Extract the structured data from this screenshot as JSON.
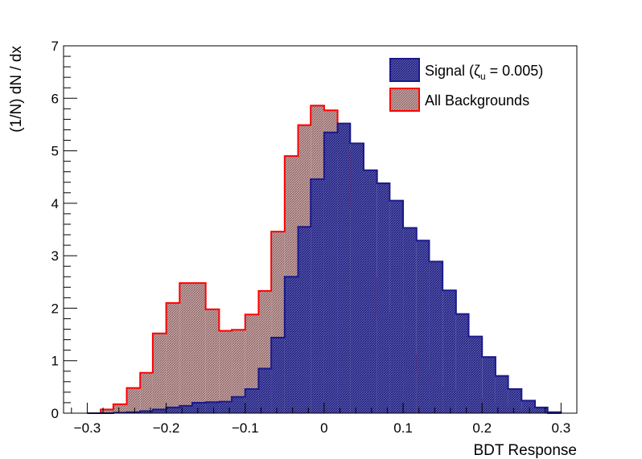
{
  "chart_data": {
    "type": "histogram",
    "xlabel": "BDT Response",
    "ylabel": "(1/N) dN / dx",
    "xlim": [
      -0.33,
      0.32
    ],
    "ylim": [
      0,
      7
    ],
    "grid": false,
    "legend_placement": "top-right",
    "bin_edges": [
      -0.3,
      -0.283,
      -0.267,
      -0.25,
      -0.233,
      -0.217,
      -0.2,
      -0.183,
      -0.167,
      -0.15,
      -0.133,
      -0.117,
      -0.1,
      -0.083,
      -0.067,
      -0.05,
      -0.033,
      -0.017,
      0,
      0.017,
      0.033,
      0.05,
      0.067,
      0.083,
      0.1,
      0.117,
      0.133,
      0.15,
      0.167,
      0.183,
      0.2,
      0.217,
      0.233,
      0.25,
      0.267,
      0.283,
      0.3
    ],
    "series": [
      {
        "name_prefix": "Signal (",
        "name_symbol": "ζ",
        "name_subscript": "u",
        "name_suffix": " = 0.005)",
        "color": "#1a1a8c",
        "fill": "#3a3a9a",
        "values": [
          0.0,
          0.0,
          0.01,
          0.02,
          0.04,
          0.07,
          0.11,
          0.14,
          0.2,
          0.21,
          0.22,
          0.31,
          0.46,
          0.85,
          1.44,
          2.6,
          3.55,
          4.46,
          5.35,
          5.52,
          5.14,
          4.63,
          4.38,
          4.05,
          3.53,
          3.29,
          2.89,
          2.34,
          1.89,
          1.46,
          1.07,
          0.71,
          0.46,
          0.24,
          0.11,
          0.02
        ]
      },
      {
        "name": "All Backgrounds",
        "color": "#ff0000",
        "fill": "#c09a9a",
        "values": [
          0.0,
          0.07,
          0.17,
          0.48,
          0.77,
          1.52,
          2.1,
          2.48,
          2.48,
          1.98,
          1.57,
          1.59,
          1.88,
          2.33,
          3.46,
          4.9,
          5.49,
          5.86,
          5.77,
          5.0,
          3.9,
          2.58,
          1.9,
          1.37,
          1.1,
          0.8,
          0.48,
          0.43,
          0.32,
          0.26,
          0.18,
          0.12,
          0.06,
          0.03,
          0.01,
          0.0
        ]
      }
    ],
    "x_ticks": [
      "-0.3",
      "-0.2",
      "-0.1",
      "0",
      "0.1",
      "0.2",
      "0.3"
    ],
    "y_ticks": [
      "0",
      "1",
      "2",
      "3",
      "4",
      "5",
      "6",
      "7"
    ]
  }
}
